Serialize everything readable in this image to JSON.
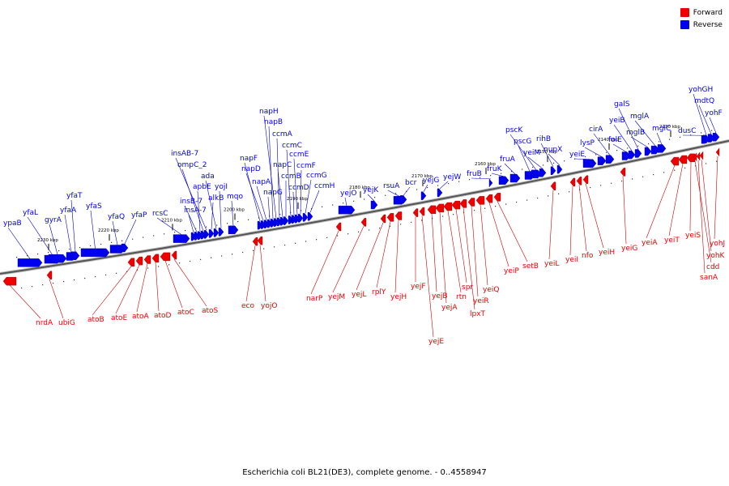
{
  "title": "Escherichia coli BL21(DE3), complete genome. - 0..4558947",
  "legend": [
    {
      "label": "Forward",
      "color": "#ee0000"
    },
    {
      "label": "Reverse",
      "color": "#0000ee"
    }
  ],
  "colors": {
    "forward": "#ee0000",
    "reverse": "#0000ee",
    "axis": "#888888",
    "label_line_fwd": "#cc0000",
    "label_line_rev": "#0000cc"
  },
  "kbp_ticks": [
    "2230 kbp",
    "2220 kbp",
    "2210 kbp",
    "2200 kbp",
    "2190 kbp",
    "2180 kbp",
    "2170 kbp",
    "2160 kbp",
    "2150 kbp",
    "2140 kbp",
    "2130 kbp"
  ],
  "reverse_genes": [
    "ypaB",
    "yfaL",
    "gyrA",
    "yfaA",
    "yfaT",
    "yfaS",
    "yfaQ",
    "yfaP",
    "rcsC",
    "insA-7",
    "insB-7",
    "apbE",
    "ompC_2",
    "insAB-7",
    "alkB",
    "ada",
    "yojI",
    "mqo",
    "napF",
    "napD",
    "napA",
    "napG",
    "napB",
    "napH",
    "ccmA",
    "napC",
    "ccmB",
    "ccmC",
    "ccmD",
    "ccmE",
    "ccmF",
    "ccmG",
    "ccmH",
    "yejO",
    "yejK",
    "rsuA",
    "bcr",
    "yejG",
    "yejW",
    "fruB",
    "fruK",
    "fruA",
    "pscG",
    "pscK",
    "yeiM",
    "rihB",
    "nupX",
    "yeiE",
    "lysP",
    "cirA",
    "folE",
    "yeiB",
    "galS",
    "mglB",
    "mglA",
    "mglC",
    "dusC",
    "yohF",
    "mdtQ",
    "yohGH"
  ],
  "forward_genes": [
    "nrdA",
    "ubiG",
    "atoB",
    "atoE",
    "atoA",
    "atoD",
    "atoC",
    "atoS",
    "eco",
    "yojO",
    "narP",
    "yejM",
    "yejL",
    "rplY",
    "yejH",
    "yejF",
    "yejE",
    "yejB",
    "yejA",
    "rtn",
    "spr",
    "lpxT",
    "yeiR",
    "yeiQ",
    "yeiP",
    "setB",
    "yeiL",
    "yeiI",
    "nfo",
    "yeiH",
    "yeiG",
    "yeiA",
    "yeiT",
    "yeiS",
    "cdd",
    "sanA",
    "yohK",
    "yohJ"
  ]
}
